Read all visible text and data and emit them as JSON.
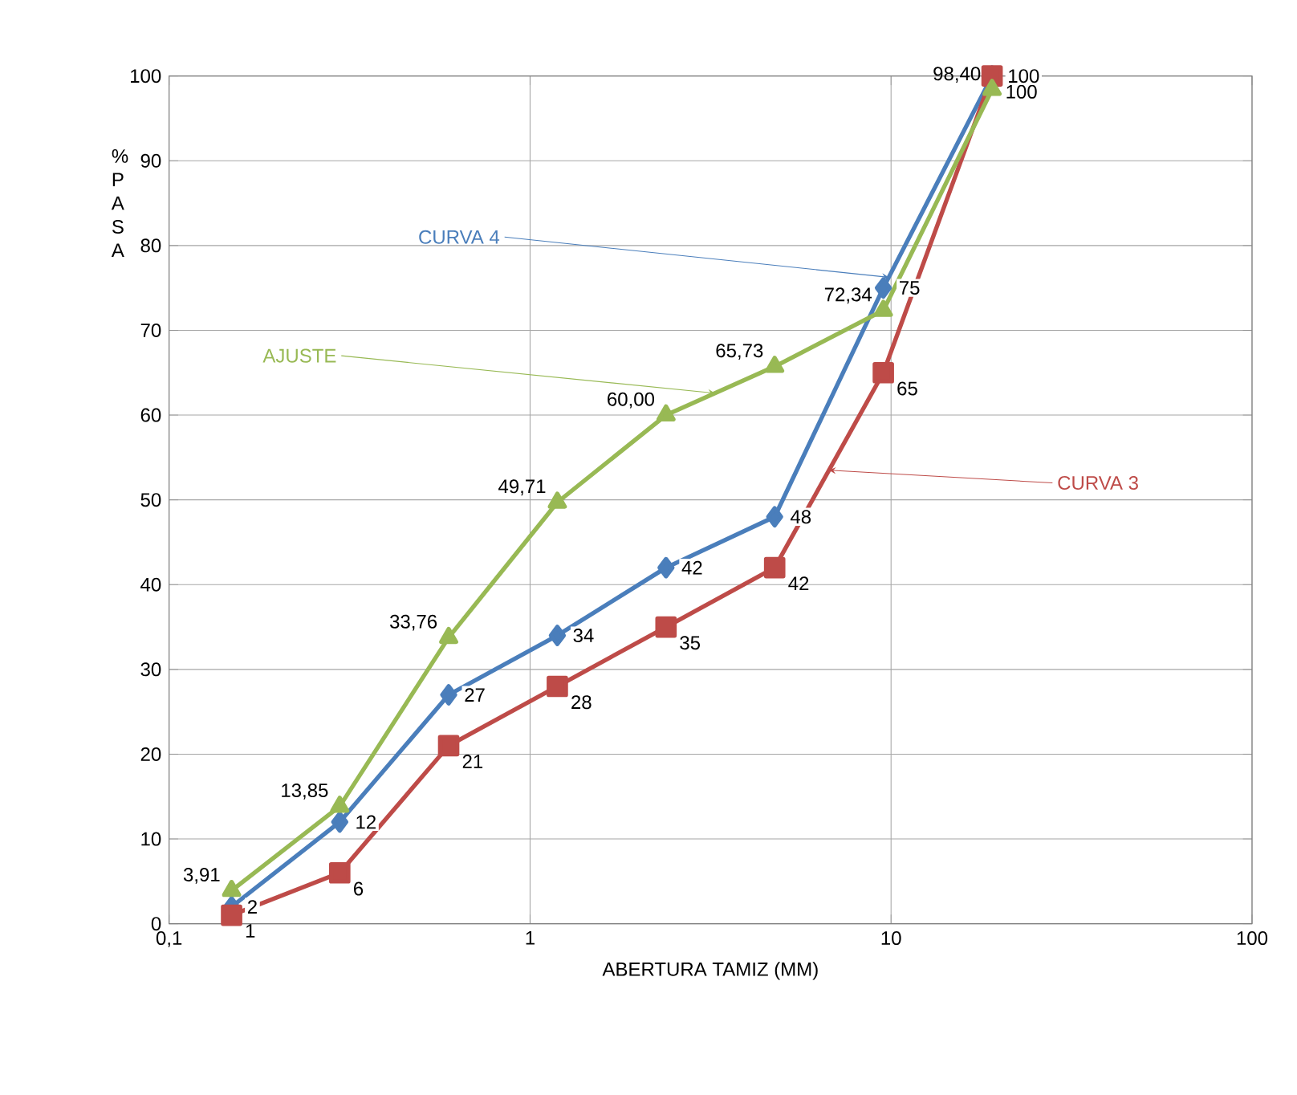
{
  "chart_data": {
    "type": "line",
    "xlabel": "ABERTURA TAMIZ (MM)",
    "ylabel": "% P A S A",
    "x": [
      0.149,
      0.297,
      0.595,
      1.19,
      2.38,
      4.76,
      9.52,
      19.05
    ],
    "log": "x",
    "xlim": [
      0.1,
      100
    ],
    "xticks": [
      {
        "value": 0.1,
        "label": "0,1"
      },
      1,
      10,
      100
    ],
    "ylim": [
      0,
      100
    ],
    "yticks": [
      0,
      10,
      20,
      30,
      40,
      50,
      60,
      70,
      80,
      90,
      100
    ],
    "grid": true,
    "series": [
      {
        "name": "CURVA 4",
        "color": "#4a7ebb",
        "marker": "diamond",
        "values": [
          2,
          12,
          27,
          34,
          42,
          48,
          75,
          100
        ],
        "value_labels": [
          "2",
          "12",
          "27",
          "34",
          "42",
          "48",
          "75",
          "100"
        ]
      },
      {
        "name": "CURVA 3",
        "color": "#be4b48",
        "marker": "square",
        "values": [
          1,
          6,
          21,
          28,
          35,
          42,
          65,
          100
        ],
        "value_labels": [
          "1",
          "6",
          "21",
          "28",
          "35",
          "42",
          "65",
          "100"
        ]
      },
      {
        "name": "AJUSTE",
        "color": "#98b954",
        "marker": "triangle",
        "values": [
          3.91,
          13.85,
          33.76,
          49.71,
          60.0,
          65.73,
          72.34,
          98.4
        ],
        "value_labels": [
          "3,91",
          "13,85",
          "33,76",
          "49,71",
          "60,00",
          "65,73",
          "72,34",
          "98,40"
        ]
      }
    ]
  }
}
